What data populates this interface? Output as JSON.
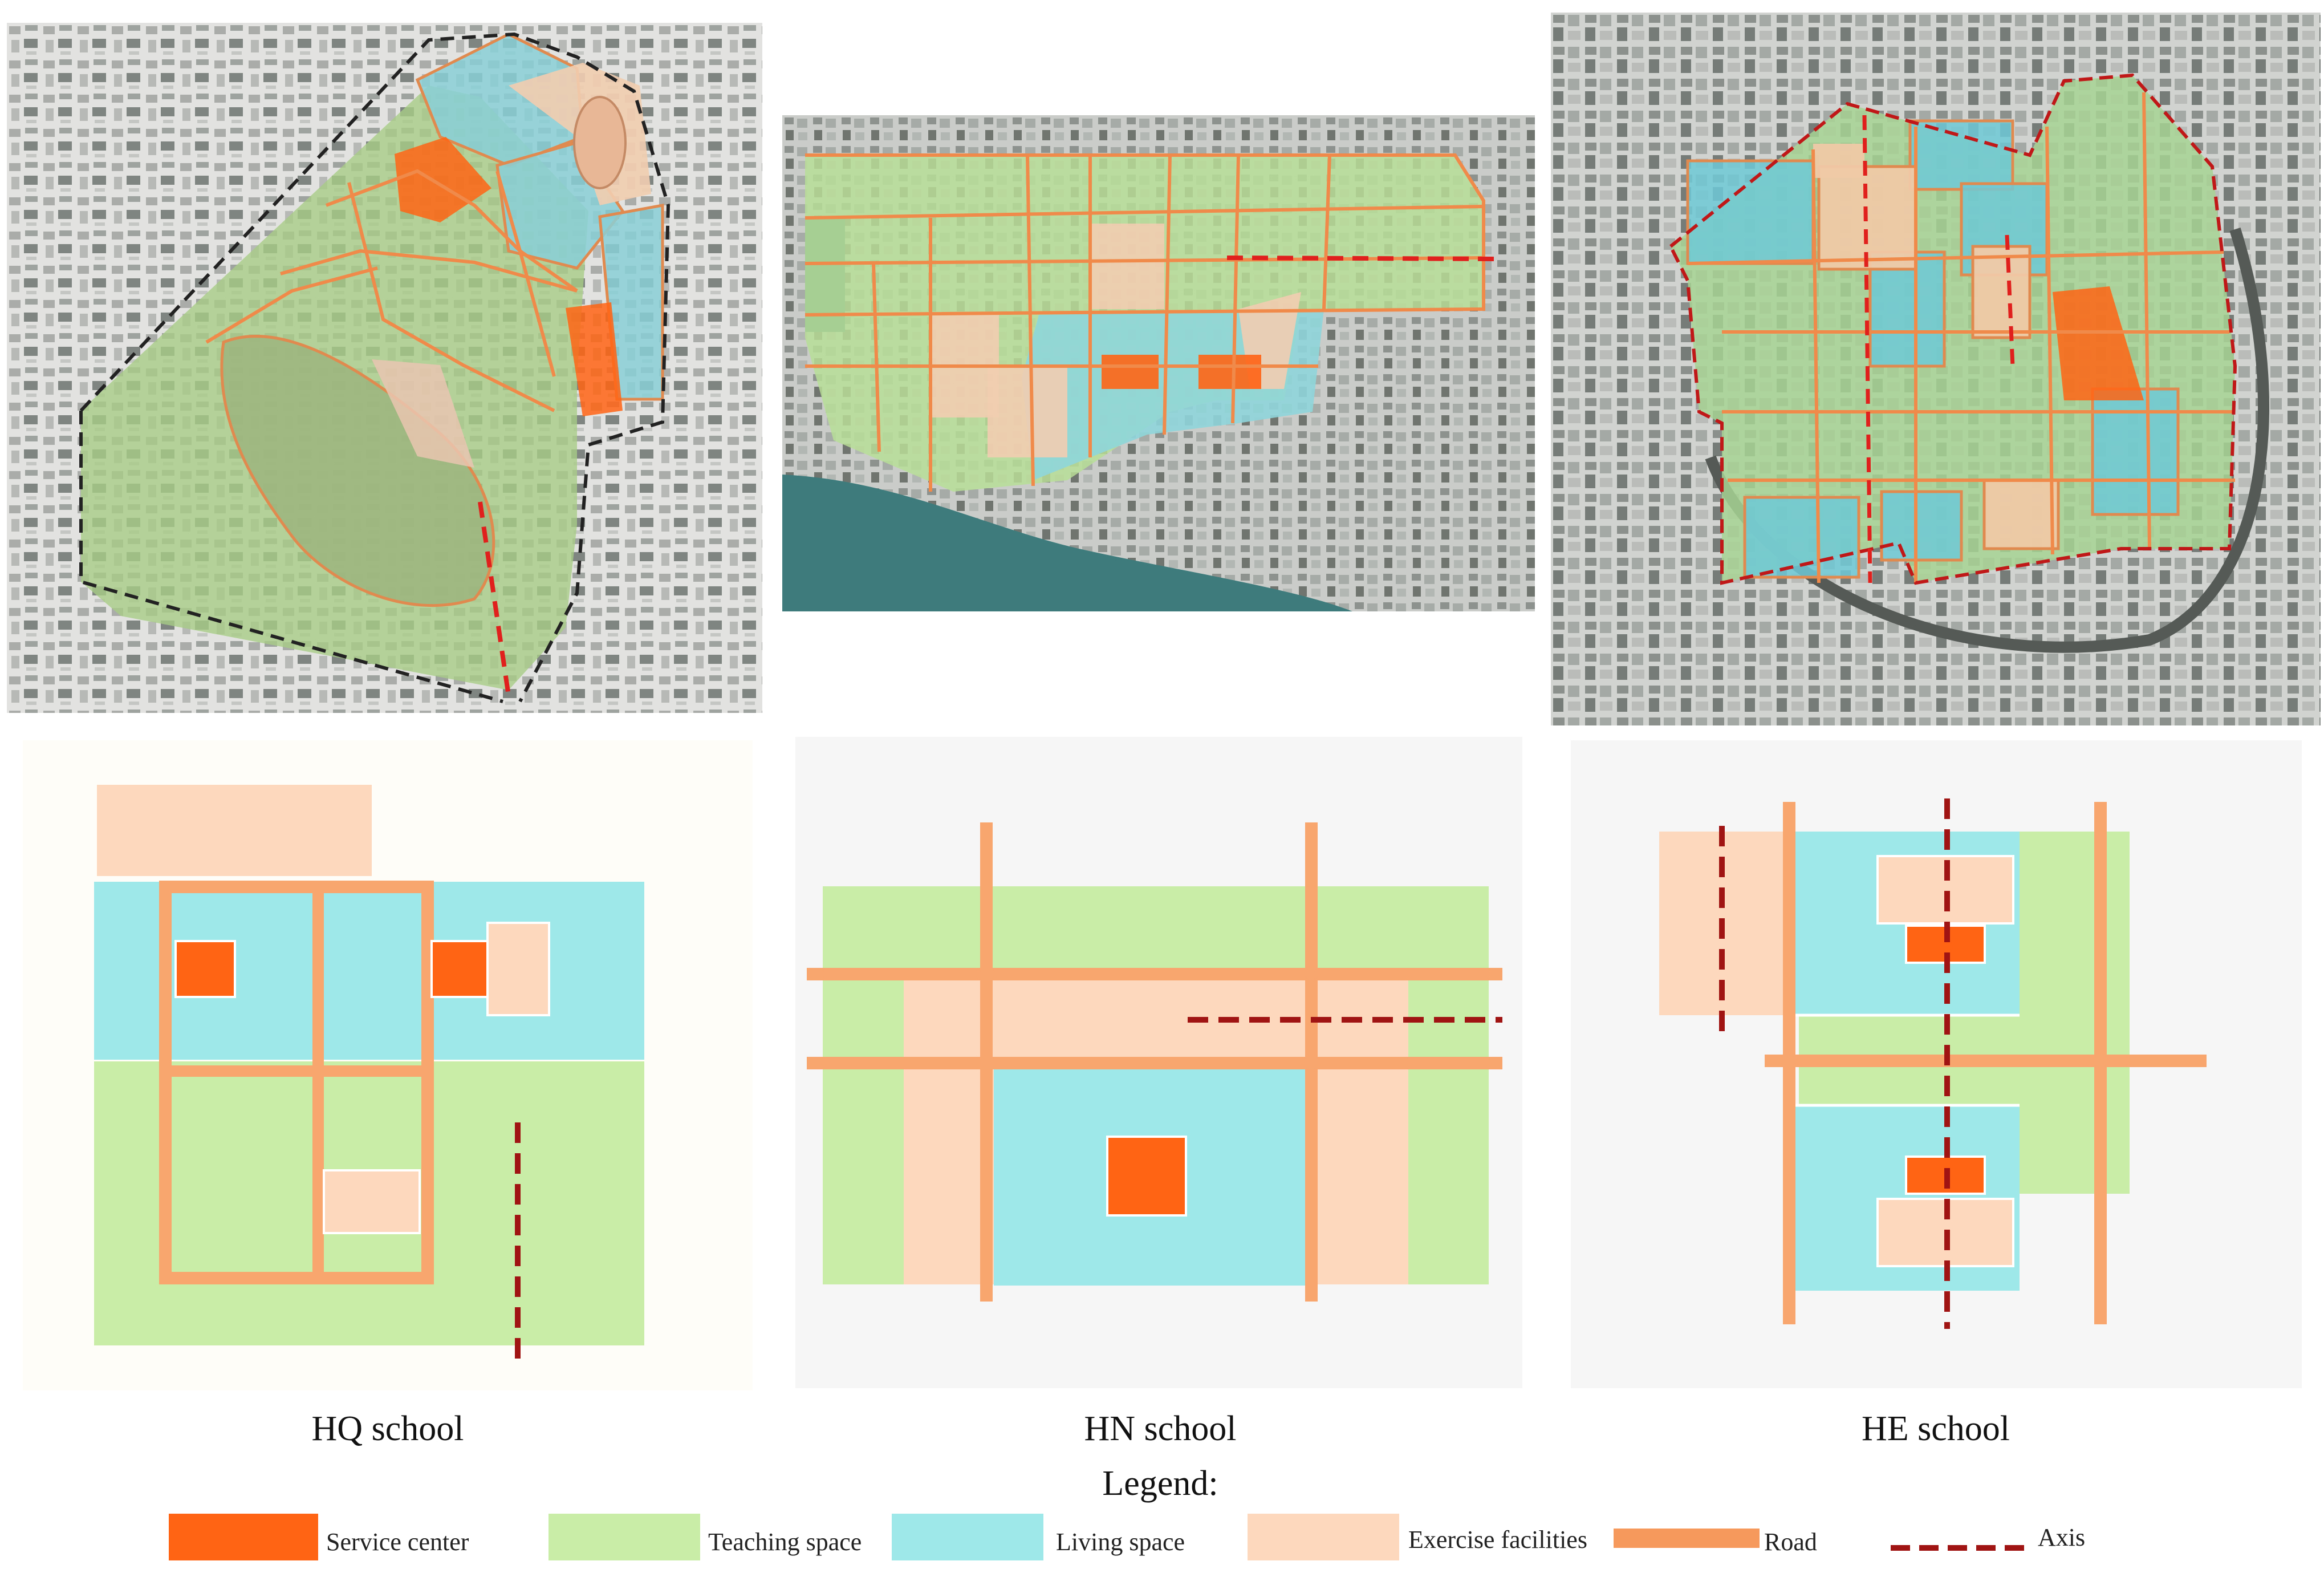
{
  "schools": [
    {
      "label": "HQ school"
    },
    {
      "label": "HN school"
    },
    {
      "label": "HE school"
    }
  ],
  "legend": {
    "title": "Legend:",
    "items": [
      {
        "label": "Service center",
        "color": "#ff6414"
      },
      {
        "label": "Teaching space",
        "color": "#c9eca7"
      },
      {
        "label": "Living space",
        "color": "#9ee8ea"
      },
      {
        "label": "Exercise facilities",
        "color": "#fdd8bd"
      },
      {
        "label": "Road",
        "color": "#f59a5c"
      },
      {
        "label": "Axis",
        "color": "#a01414"
      }
    ]
  },
  "colors": {
    "service": "#ff6414",
    "teaching": "#c9eca7",
    "living": "#9ee8ea",
    "exercise": "#fdd8bd",
    "road": "#f59a5c",
    "axis": "#a01414",
    "water": "#3d7b7c",
    "aerial_bg": "#d4d6d3"
  }
}
